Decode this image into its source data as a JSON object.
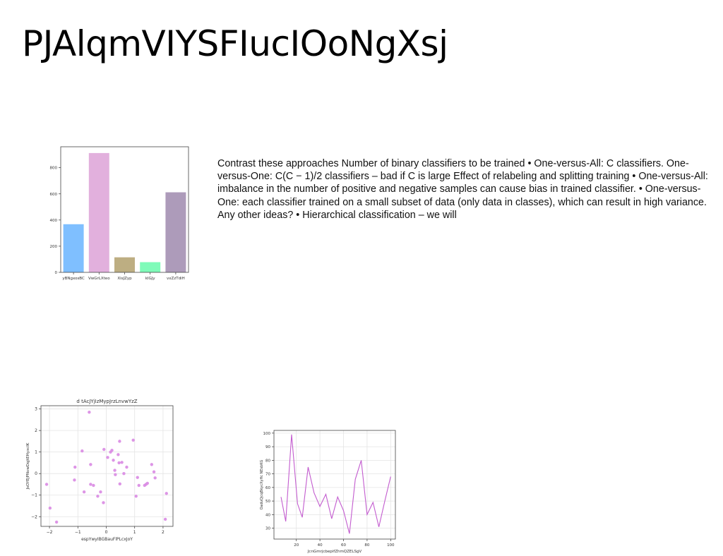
{
  "slide": {
    "title": "PJAlqmVIYSFIucIOoNgXsj",
    "body": "Contrast these approaches Number of binary classifiers to be trained • One-versus-All: C classifiers. One-versus-One: C(C − 1)/2 classifiers – bad if C is large Effect of relabeling and splitting training • One-versus-All: imbalance in the number of positive and negative samples can cause bias in trained classifier. • One-versus-One: each classifier trained on a small subset of data (only data in classes), which can result in high variance. Any other ideas? • Hierarchical classification – we will"
  },
  "chart_data": [
    {
      "type": "bar",
      "title": "",
      "xlabel": "",
      "ylabel": "",
      "categories": [
        "yBNgxosBC",
        "VwGrLXteo",
        "XisJZyp",
        "kIGJy",
        "vxZzTdiH"
      ],
      "values": [
        368,
        912,
        115,
        78,
        612
      ],
      "colors": [
        "#7fbfff",
        "#e2b0dd",
        "#bdae82",
        "#7ffbb9",
        "#ad9bba"
      ],
      "ylim": [
        0,
        960
      ],
      "yticks": [
        0,
        200,
        400,
        600,
        800
      ],
      "grid": false
    },
    {
      "type": "scatter",
      "title": "d tAcJYjIzMypJrzLnvwYzZ",
      "xlabel": "espYwyIBGBauFlPLcxJoY",
      "ylabel": "JsOYEjPNvwDqjtEHyxcIK",
      "color": "#d98ae3",
      "xlim": [
        -2.3,
        2.35
      ],
      "ylim": [
        -2.45,
        3.15
      ],
      "xticks": [
        -2,
        -1,
        0,
        1,
        2
      ],
      "yticks": [
        -2,
        -1,
        0,
        1,
        2,
        3
      ],
      "grid": true,
      "points": [
        [
          -2.1,
          -0.5
        ],
        [
          -1.98,
          -1.6
        ],
        [
          -1.75,
          -2.25
        ],
        [
          -1.12,
          -0.3
        ],
        [
          -1.1,
          0.3
        ],
        [
          -0.85,
          1.05
        ],
        [
          -0.78,
          -0.85
        ],
        [
          -0.6,
          2.85
        ],
        [
          -0.55,
          0.42
        ],
        [
          -0.55,
          -0.5
        ],
        [
          -0.45,
          -0.55
        ],
        [
          -0.3,
          -1.05
        ],
        [
          -0.2,
          -0.85
        ],
        [
          -0.08,
          1.12
        ],
        [
          -0.1,
          -1.35
        ],
        [
          0.05,
          0.75
        ],
        [
          0.15,
          1.0
        ],
        [
          0.2,
          1.08
        ],
        [
          0.25,
          0.62
        ],
        [
          0.3,
          0.15
        ],
        [
          0.32,
          -0.05
        ],
        [
          0.42,
          0.88
        ],
        [
          0.45,
          0.5
        ],
        [
          0.47,
          1.5
        ],
        [
          0.48,
          -0.48
        ],
        [
          0.55,
          0.52
        ],
        [
          0.62,
          0.0
        ],
        [
          0.72,
          0.3
        ],
        [
          0.95,
          1.55
        ],
        [
          1.05,
          -1.05
        ],
        [
          1.1,
          -0.18
        ],
        [
          1.15,
          -0.55
        ],
        [
          1.35,
          -0.55
        ],
        [
          1.4,
          -0.5
        ],
        [
          1.45,
          -0.45
        ],
        [
          1.6,
          0.42
        ],
        [
          1.68,
          0.08
        ],
        [
          1.72,
          -0.2
        ],
        [
          2.08,
          -2.12
        ],
        [
          2.12,
          -0.92
        ]
      ]
    },
    {
      "type": "line",
      "title": "",
      "xlabel": "JcnGmrjcbepifZhmQZELSgV",
      "ylabel": "OaduQjcqBkycXyHc NEsbKG",
      "color": "#c35ccf",
      "xlim": [
        1,
        104
      ],
      "ylim": [
        22,
        102
      ],
      "xticks": [
        20,
        40,
        60,
        80,
        100
      ],
      "yticks": [
        30,
        40,
        50,
        60,
        70,
        80,
        90,
        100
      ],
      "grid": true,
      "x": [
        7,
        11,
        16,
        21,
        25,
        30,
        35,
        40,
        45,
        50,
        55,
        60,
        65,
        70,
        75,
        80,
        85,
        90,
        95,
        100
      ],
      "y": [
        53,
        35,
        99,
        48,
        38,
        75,
        56,
        46,
        55,
        37,
        53,
        43,
        26,
        66,
        80,
        40,
        49,
        31,
        50,
        68
      ]
    }
  ]
}
